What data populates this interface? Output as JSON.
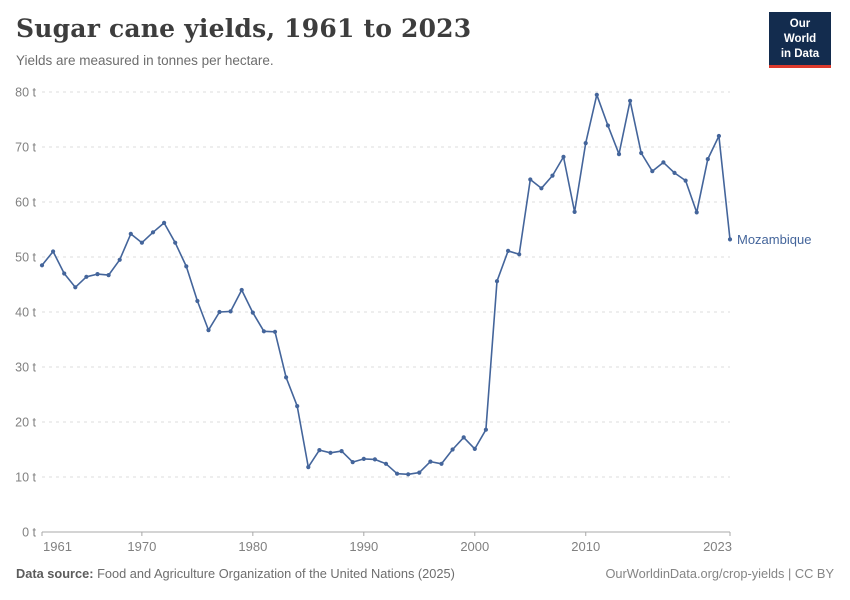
{
  "header": {
    "logo": {
      "line1": "Our World",
      "line2": "in Data",
      "bg_color": "#132c4e",
      "accent_color": "#dc3a2d"
    }
  },
  "footer": {
    "source_label": "Data source:",
    "source_text": " Food and Agriculture Organization of the United Nations (2025)",
    "url": "OurWorldinData.org/crop-yields",
    "separator": " | ",
    "license": "CC BY"
  },
  "chart_data": {
    "type": "line",
    "title": "Sugar cane yields, 1961 to 2023",
    "subtitle": "Yields are measured in tonnes per hectare.",
    "unit_suffix": " t",
    "ylim": [
      0,
      80
    ],
    "yticks": [
      0,
      10,
      20,
      30,
      40,
      50,
      60,
      70,
      80
    ],
    "xticks": [
      1961,
      1970,
      1980,
      1990,
      2000,
      2010,
      2023
    ],
    "grid": "dashed-horizontal",
    "legend_position": "end-of-line-label",
    "axis_color": "#a8a8a8",
    "grid_color": "#dedede",
    "tick_label_color": "#818181",
    "x": [
      1961,
      1962,
      1963,
      1964,
      1965,
      1966,
      1967,
      1968,
      1969,
      1970,
      1971,
      1972,
      1973,
      1974,
      1975,
      1976,
      1977,
      1978,
      1979,
      1980,
      1981,
      1982,
      1983,
      1984,
      1985,
      1986,
      1987,
      1988,
      1989,
      1990,
      1991,
      1992,
      1993,
      1994,
      1995,
      1996,
      1997,
      1998,
      1999,
      2000,
      2001,
      2002,
      2003,
      2004,
      2005,
      2006,
      2007,
      2008,
      2009,
      2010,
      2011,
      2012,
      2013,
      2014,
      2015,
      2016,
      2017,
      2018,
      2019,
      2020,
      2021,
      2022,
      2023
    ],
    "series": [
      {
        "name": "Mozambique",
        "color": "#44659b",
        "values": [
          48.5,
          51.0,
          47.0,
          44.5,
          46.4,
          46.9,
          46.7,
          49.5,
          54.2,
          52.6,
          54.5,
          56.2,
          52.6,
          48.3,
          42.0,
          36.7,
          40.0,
          40.1,
          44.0,
          39.9,
          36.5,
          36.4,
          28.1,
          22.9,
          11.8,
          14.9,
          14.4,
          14.7,
          12.7,
          13.3,
          13.2,
          12.4,
          10.6,
          10.5,
          10.8,
          12.8,
          12.4,
          15.0,
          17.2,
          15.1,
          18.6,
          45.6,
          51.1,
          50.5,
          64.1,
          62.5,
          64.8,
          68.2,
          58.2,
          70.7,
          79.5,
          73.9,
          68.7,
          78.4,
          68.9,
          65.6,
          67.2,
          65.3,
          63.9,
          58.1,
          67.8,
          72.0,
          53.2
        ]
      }
    ]
  }
}
